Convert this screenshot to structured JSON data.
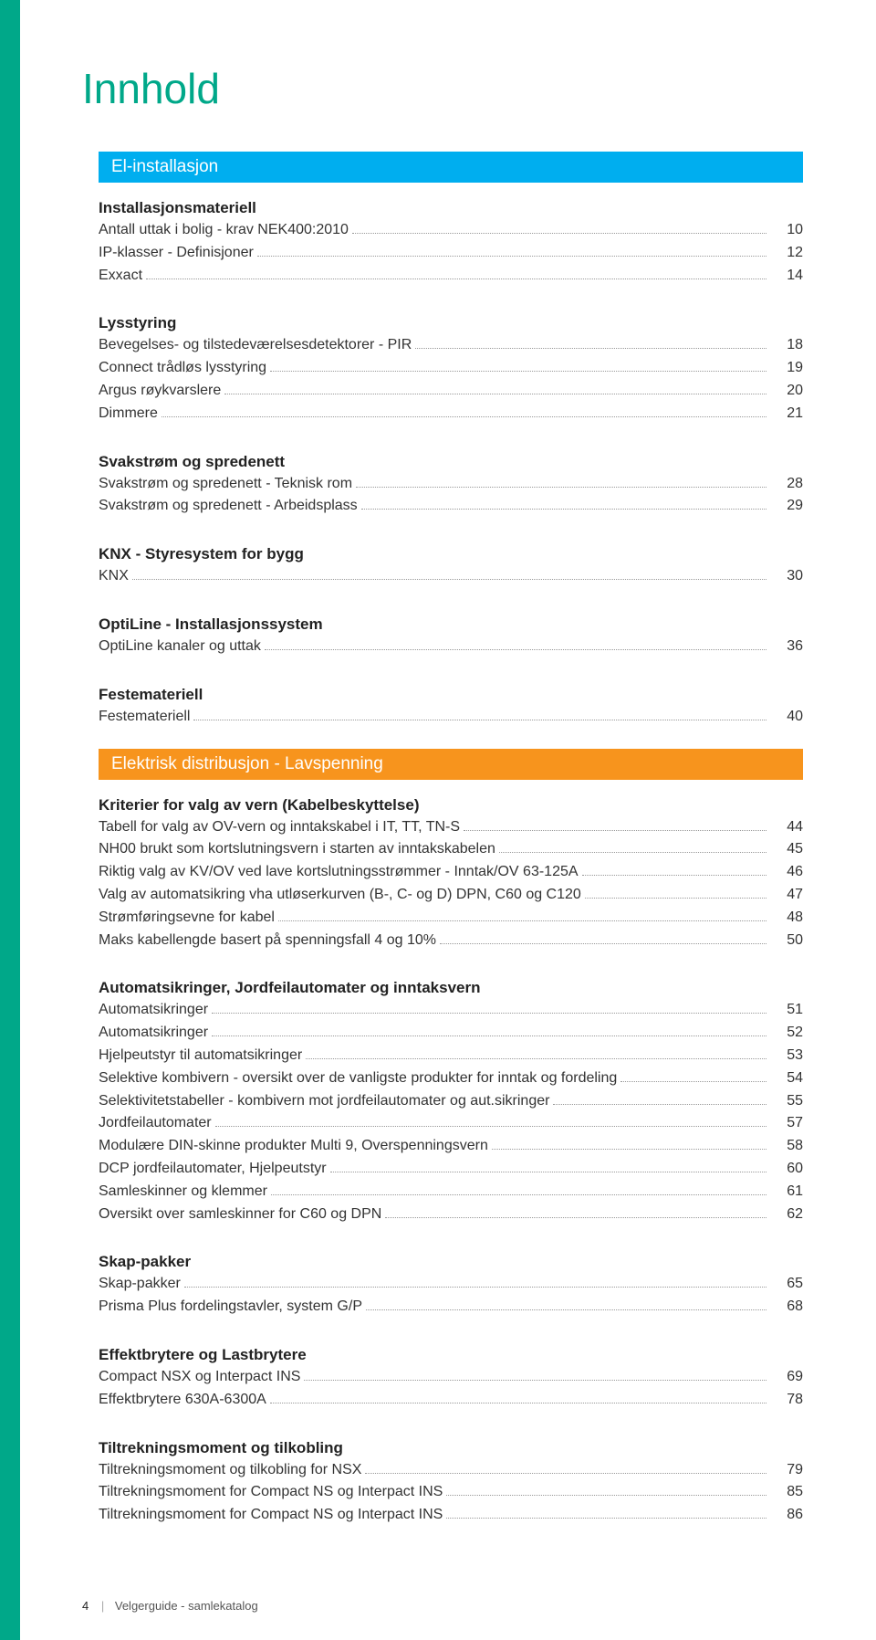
{
  "colors": {
    "spine": "#00a889",
    "title": "#00a889",
    "bar_blue": "#00aeef",
    "bar_orange": "#f7941d",
    "text": "#333333",
    "dots": "#999999",
    "background": "#ffffff"
  },
  "typography": {
    "title_size_pt": 34,
    "bar_size_pt": 14,
    "group_title_size_pt": 13,
    "entry_size_pt": 12,
    "footer_size_pt": 10
  },
  "title": "Innhold",
  "sections": [
    {
      "bar_label": "El-installasjon",
      "bar_color": "bar-blue",
      "groups": [
        {
          "title": "Installasjonsmateriell",
          "entries": [
            {
              "label": "Antall uttak i bolig - krav NEK400:2010",
              "page": "10"
            },
            {
              "label": "IP-klasser - Definisjoner",
              "page": "12"
            },
            {
              "label": "Exxact",
              "page": "14"
            }
          ]
        },
        {
          "title": "Lysstyring",
          "entries": [
            {
              "label": "Bevegelses- og tilstedeværelsesdetektorer - PIR",
              "page": "18"
            },
            {
              "label": "Connect trådløs lysstyring",
              "page": "19"
            },
            {
              "label": "Argus røykvarslere",
              "page": "20"
            },
            {
              "label": "Dimmere",
              "page": "21"
            }
          ]
        },
        {
          "title": "Svakstrøm og spredenett",
          "entries": [
            {
              "label": "Svakstrøm og spredenett - Teknisk rom",
              "page": "28"
            },
            {
              "label": "Svakstrøm og spredenett - Arbeidsplass",
              "page": "29"
            }
          ]
        },
        {
          "title": "KNX - Styresystem for bygg",
          "entries": [
            {
              "label": "KNX",
              "page": "30"
            }
          ]
        },
        {
          "title": "OptiLine - Installasjonssystem",
          "entries": [
            {
              "label": "OptiLine kanaler og uttak",
              "page": "36"
            }
          ]
        },
        {
          "title": "Festemateriell",
          "entries": [
            {
              "label": "Festemateriell",
              "page": "40"
            }
          ]
        }
      ]
    },
    {
      "bar_label": "Elektrisk distribusjon - Lavspenning",
      "bar_color": "bar-orange",
      "groups": [
        {
          "title": "Kriterier for valg av  vern (Kabelbeskyttelse)",
          "entries": [
            {
              "label": "Tabell for valg av OV-vern og inntakskabel i IT, TT, TN-S",
              "page": "44"
            },
            {
              "label": "NH00 brukt som kortslutningsvern i starten av inntakskabelen",
              "page": "45"
            },
            {
              "label": "Riktig valg av KV/OV ved lave kortslutningsstrømmer  -  Inntak/OV 63-125A",
              "page": "46"
            },
            {
              "label": "Valg av automatsikring vha utløserkurven (B-, C- og D) DPN, C60 og C120",
              "page": "47"
            },
            {
              "label": "Strømføringsevne for kabel",
              "page": "48"
            },
            {
              "label": "Maks kabellengde basert på spenningsfall 4 og 10%",
              "page": "50"
            }
          ]
        },
        {
          "title": "Automatsikringer, Jordfeilautomater og inntaksvern",
          "entries": [
            {
              "label": "Automatsikringer",
              "page": "51"
            },
            {
              "label": "Automatsikringer",
              "page": "52"
            },
            {
              "label": "Hjelpeutstyr til automatsikringer",
              "page": "53"
            },
            {
              "label": "Selektive kombivern - oversikt over de vanligste produkter for inntak og fordeling",
              "page": "54"
            },
            {
              "label": "Selektivitetstabeller - kombivern mot jordfeilautomater og aut.sikringer",
              "page": "55"
            },
            {
              "label": "Jordfeilautomater",
              "page": "57"
            },
            {
              "label": "Modulære DIN-skinne produkter Multi 9, Overspenningsvern",
              "page": "58"
            },
            {
              "label": "DCP jordfeilautomater, Hjelpeutstyr",
              "page": "60"
            },
            {
              "label": "Samleskinner og klemmer",
              "page": "61"
            },
            {
              "label": "Oversikt over samleskinner for C60 og DPN",
              "page": "62"
            }
          ]
        },
        {
          "title": "Skap-pakker",
          "entries": [
            {
              "label": "Skap-pakker",
              "page": "65"
            },
            {
              "label": "Prisma Plus fordelingstavler, system G/P",
              "page": "68"
            }
          ]
        },
        {
          "title": "Effektbrytere og Lastbrytere",
          "entries": [
            {
              "label": "Compact NSX og Interpact INS",
              "page": "69"
            },
            {
              "label": "Effektbrytere 630A-6300A",
              "page": "78"
            }
          ]
        },
        {
          "title": "Tiltrekningsmoment og tilkobling",
          "entries": [
            {
              "label": "Tiltrekningsmoment og tilkobling for NSX",
              "page": "79"
            },
            {
              "label": "Tiltrekningsmoment for Compact NS og Interpact INS",
              "page": "85"
            },
            {
              "label": "Tiltrekningsmoment for Compact NS og Interpact INS",
              "page": "86"
            }
          ]
        }
      ]
    }
  ],
  "footer": {
    "page_number": "4",
    "text": "Velgerguide - samlekatalog"
  }
}
